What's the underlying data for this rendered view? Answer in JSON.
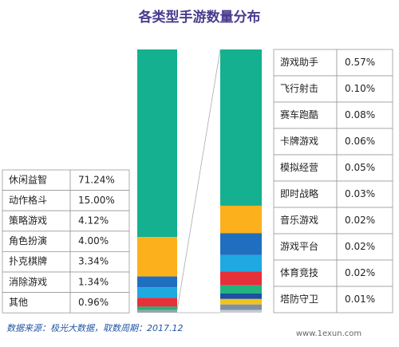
{
  "chart_data": {
    "type": "bar",
    "title": "各类型手游数量分布",
    "source": "数据来源：极光大数据，取数周期：2017.12",
    "watermark": "www.1exun.com",
    "main": {
      "categories": [
        "休闲益智",
        "动作格斗",
        "策略游戏",
        "角色扮演",
        "扑克棋牌",
        "消除游戏",
        "其他"
      ],
      "values": [
        71.24,
        15.0,
        4.12,
        4.0,
        3.34,
        1.34,
        0.96
      ],
      "value_labels": [
        "71.24%",
        "15.00%",
        "4.12%",
        "4.00%",
        "3.34%",
        "1.34%",
        "0.96%"
      ],
      "colors": [
        "#14b08f",
        "#fbb01c",
        "#1f6fc0",
        "#1ea9e1",
        "#e6303a",
        "#22b37f",
        "#9aa3ad"
      ]
    },
    "detail": {
      "categories": [
        "游戏助手",
        "飞行射击",
        "赛车跑酷",
        "卡牌游戏",
        "模拟经营",
        "即时战略",
        "音乐游戏",
        "游戏平台",
        "体育竞技",
        "塔防守卫"
      ],
      "values": [
        0.57,
        0.1,
        0.08,
        0.06,
        0.05,
        0.03,
        0.02,
        0.02,
        0.02,
        0.01
      ],
      "value_labels": [
        "0.57%",
        "0.10%",
        "0.08%",
        "0.06%",
        "0.05%",
        "0.03%",
        "0.02%",
        "0.02%",
        "0.02%",
        "0.01%"
      ],
      "colors": [
        "#14b08f",
        "#fbb01c",
        "#1f6fc0",
        "#1ea9e1",
        "#e6303a",
        "#22b37f",
        "#1e4fa0",
        "#f0c419",
        "#7f8fa6",
        "#c7ccd3"
      ]
    }
  }
}
